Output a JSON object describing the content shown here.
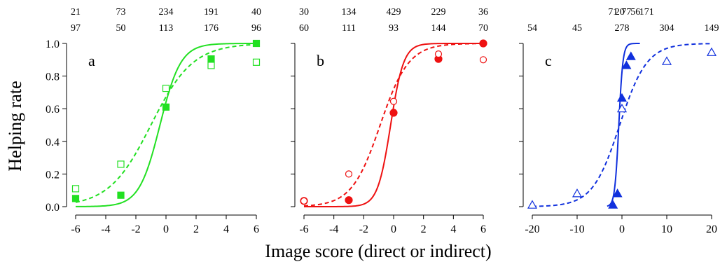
{
  "figure": {
    "ylabel": "Helping rate",
    "xlabel": "Image score (direct or indirect)"
  },
  "chart_data": [
    {
      "type": "scatter",
      "panel_label": "a",
      "color": "#22e022",
      "xlim": [
        -6,
        6
      ],
      "ylim": [
        0,
        1
      ],
      "xticks": [
        -6,
        -4,
        -2,
        0,
        2,
        4,
        6
      ],
      "yticks": [
        0.0,
        0.2,
        0.4,
        0.6,
        0.8,
        1.0
      ],
      "ytick_labels": [
        "0.0",
        "0.2",
        "0.4",
        "0.6",
        "0.8",
        "1.0"
      ],
      "show_yticklabels": true,
      "marker": "square",
      "counts_top": {
        "x": [
          -6,
          -3,
          0,
          3,
          6
        ],
        "labels": [
          "21",
          "73",
          "234",
          "191",
          "40"
        ]
      },
      "counts_bottom": {
        "x": [
          -6,
          -3,
          0,
          3,
          6
        ],
        "labels": [
          "97",
          "50",
          "113",
          "176",
          "96"
        ]
      },
      "series": [
        {
          "fill": "filled",
          "line": "solid",
          "x": [
            -6,
            -3,
            0,
            3,
            6
          ],
          "y": [
            0.05,
            0.07,
            0.61,
            0.905,
            1.0
          ],
          "fit": {
            "x0": -0.4,
            "k": 1.45
          }
        },
        {
          "fill": "open",
          "line": "dashed",
          "x": [
            -6,
            -3,
            0,
            3,
            6
          ],
          "y": [
            0.11,
            0.26,
            0.725,
            0.865,
            0.885
          ],
          "fit": {
            "x0": -1.0,
            "k": 0.72
          }
        }
      ]
    },
    {
      "type": "scatter",
      "panel_label": "b",
      "color": "#ee1111",
      "xlim": [
        -6,
        6
      ],
      "ylim": [
        0,
        1
      ],
      "xticks": [
        -6,
        -4,
        -2,
        0,
        2,
        4,
        6
      ],
      "yticks": [
        0.0,
        0.2,
        0.4,
        0.6,
        0.8,
        1.0
      ],
      "ytick_labels": [
        "0.0",
        "0.2",
        "0.4",
        "0.6",
        "0.8",
        "1.0"
      ],
      "show_yticklabels": false,
      "marker": "circle",
      "counts_top": {
        "x": [
          -6,
          -3,
          0,
          3,
          6
        ],
        "labels": [
          "30",
          "134",
          "429",
          "229",
          "36"
        ]
      },
      "counts_bottom": {
        "x": [
          -6,
          -3,
          0,
          3,
          6
        ],
        "labels": [
          "60",
          "111",
          "93",
          "144",
          "70"
        ]
      },
      "series": [
        {
          "fill": "filled",
          "line": "solid",
          "x": [
            -6,
            -3,
            0,
            3,
            6
          ],
          "y": [
            0.035,
            0.04,
            0.575,
            0.905,
            1.0
          ],
          "fit": {
            "x0": -0.2,
            "k": 2.3
          }
        },
        {
          "fill": "open",
          "line": "dashed",
          "x": [
            -6,
            -3,
            0,
            3,
            6
          ],
          "y": [
            0.035,
            0.2,
            0.645,
            0.935,
            0.9
          ],
          "fit": {
            "x0": -0.9,
            "k": 1.05
          }
        }
      ]
    },
    {
      "type": "scatter",
      "panel_label": "c",
      "color": "#1030dd",
      "xlim": [
        -20,
        20
      ],
      "ylim": [
        0,
        1
      ],
      "xticks": [
        -20,
        -10,
        0,
        10,
        20
      ],
      "yticks": [
        0.0,
        0.2,
        0.4,
        0.6,
        0.8,
        1.0
      ],
      "ytick_labels": [
        "0.0",
        "0.2",
        "0.4",
        "0.6",
        "0.8",
        "1.0"
      ],
      "show_yticklabels": false,
      "marker": "triangle",
      "counts_top": {
        "x": [
          -2,
          -0.5,
          1,
          3,
          5.5
        ],
        "labels": [
          "71",
          "20",
          "77",
          "56",
          "171"
        ]
      },
      "counts_bottom": {
        "x": [
          -20,
          -10,
          0,
          10,
          20
        ],
        "labels": [
          "54",
          "45",
          "278",
          "304",
          "149"
        ]
      },
      "series": [
        {
          "fill": "filled",
          "line": "solid",
          "x": [
            -2,
            -1,
            0,
            1,
            2
          ],
          "y": [
            0.01,
            0.08,
            0.665,
            0.865,
            0.92
          ],
          "fit": {
            "x0": -0.7,
            "k": 2.2,
            "xmin": -3.3,
            "xmax": 4
          }
        },
        {
          "fill": "open",
          "line": "dashed",
          "x": [
            -20,
            -10,
            0,
            10,
            20
          ],
          "y": [
            0.01,
            0.08,
            0.6,
            0.89,
            0.945
          ],
          "fit": {
            "x0": -0.5,
            "k": 0.33
          }
        }
      ]
    }
  ]
}
